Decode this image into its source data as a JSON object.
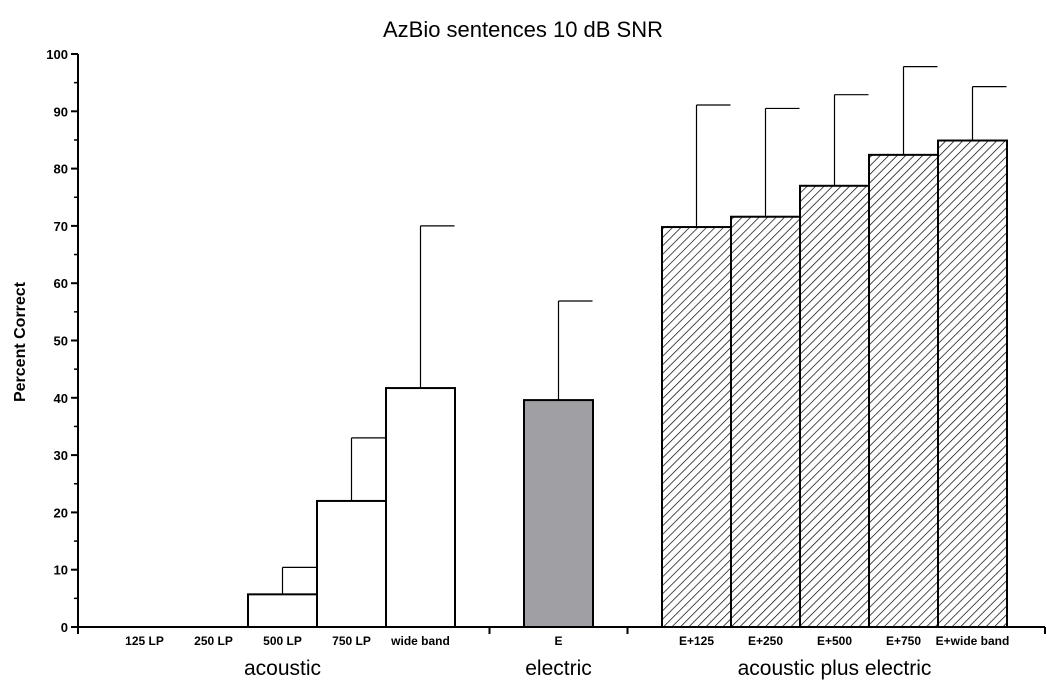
{
  "chart_data": {
    "type": "bar",
    "title": "AzBio sentences 10 dB SNR",
    "ylabel": "Percent Correct",
    "xlabel": "",
    "ylim": [
      0,
      100
    ],
    "yticks": [
      0,
      10,
      20,
      30,
      40,
      50,
      60,
      70,
      80,
      90,
      100
    ],
    "grid": false,
    "error_bars": "upper",
    "groups": [
      {
        "label": "acoustic",
        "categories": [
          "125 LP",
          "250 LP",
          "500 LP",
          "750 LP",
          "wide band"
        ]
      },
      {
        "label": "electric",
        "categories": [
          "E"
        ]
      },
      {
        "label": "acoustic plus electric",
        "categories": [
          "E+125",
          "E+250",
          "E+500",
          "E+750",
          "E+wide band"
        ]
      }
    ],
    "bars": [
      {
        "category": "125 LP",
        "group": "acoustic",
        "value": 0,
        "error_upper": 0,
        "fill": "#ffffff",
        "pattern": "none"
      },
      {
        "category": "250 LP",
        "group": "acoustic",
        "value": 0,
        "error_upper": 0,
        "fill": "#ffffff",
        "pattern": "none"
      },
      {
        "category": "500 LP",
        "group": "acoustic",
        "value": 5.7,
        "error_upper": 10.4,
        "fill": "#ffffff",
        "pattern": "none"
      },
      {
        "category": "750 LP",
        "group": "acoustic",
        "value": 22.0,
        "error_upper": 33.0,
        "fill": "#ffffff",
        "pattern": "none"
      },
      {
        "category": "wide band",
        "group": "acoustic",
        "value": 41.7,
        "error_upper": 70.0,
        "fill": "#ffffff",
        "pattern": "none"
      },
      {
        "category": "E",
        "group": "electric",
        "value": 39.6,
        "error_upper": 56.9,
        "fill": "#a0a0a4",
        "pattern": "none"
      },
      {
        "category": "E+125",
        "group": "acoustic plus electric",
        "value": 69.8,
        "error_upper": 91.1,
        "fill": "#ffffff",
        "pattern": "diagonal-hatch"
      },
      {
        "category": "E+250",
        "group": "acoustic plus electric",
        "value": 71.6,
        "error_upper": 90.5,
        "fill": "#ffffff",
        "pattern": "diagonal-hatch"
      },
      {
        "category": "E+500",
        "group": "acoustic plus electric",
        "value": 77.0,
        "error_upper": 92.9,
        "fill": "#ffffff",
        "pattern": "diagonal-hatch"
      },
      {
        "category": "E+750",
        "group": "acoustic plus electric",
        "value": 82.4,
        "error_upper": 97.8,
        "fill": "#ffffff",
        "pattern": "diagonal-hatch"
      },
      {
        "category": "E+wide band",
        "group": "acoustic plus electric",
        "value": 84.9,
        "error_upper": 94.3,
        "fill": "#ffffff",
        "pattern": "diagonal-hatch"
      }
    ]
  }
}
